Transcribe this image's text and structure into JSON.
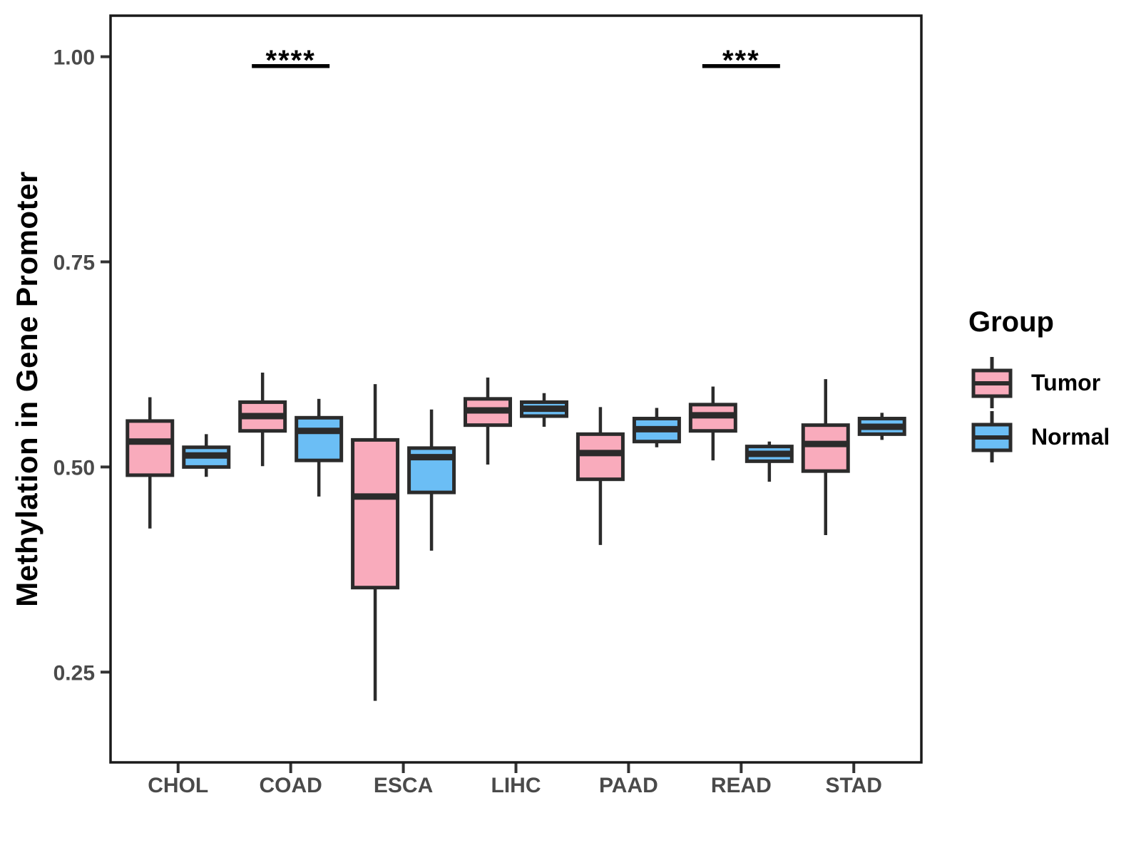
{
  "figure": {
    "background": "#ffffff",
    "panel_border_color": "#1a1a1a",
    "tick_color": "#333333",
    "tick_label_color": "#4a4a4a"
  },
  "chart_data": {
    "type": "boxplot",
    "title": "",
    "xlabel": "",
    "ylabel": "Methylation in Gene Promoter",
    "categories": [
      "CHOL",
      "COAD",
      "ESCA",
      "LIHC",
      "PAAD",
      "READ",
      "STAD"
    ],
    "groups": [
      "Tumor",
      "Normal"
    ],
    "ylim": [
      0.14,
      1.05
    ],
    "yticks": [
      0.25,
      0.5,
      0.75,
      1.0
    ],
    "ytick_labels": [
      "0.25",
      "0.50",
      "0.75",
      "1.00"
    ],
    "grid": false,
    "legend": {
      "title": "Group",
      "position": "right",
      "entries": [
        {
          "label": "Tumor",
          "color": "#F9ABBC"
        },
        {
          "label": "Normal",
          "color": "#6BBEF5"
        }
      ]
    },
    "series": [
      {
        "name": "Tumor",
        "fill": "#F9ABBC",
        "stroke": "#2b2b2b",
        "boxes": [
          {
            "category": "CHOL",
            "min": 0.425,
            "q1": 0.49,
            "median": 0.531,
            "q3": 0.556,
            "max": 0.585
          },
          {
            "category": "COAD",
            "min": 0.501,
            "q1": 0.544,
            "median": 0.562,
            "q3": 0.579,
            "max": 0.615
          },
          {
            "category": "ESCA",
            "min": 0.215,
            "q1": 0.353,
            "median": 0.464,
            "q3": 0.533,
            "max": 0.601
          },
          {
            "category": "LIHC",
            "min": 0.503,
            "q1": 0.551,
            "median": 0.569,
            "q3": 0.583,
            "max": 0.609
          },
          {
            "category": "PAAD",
            "min": 0.405,
            "q1": 0.485,
            "median": 0.517,
            "q3": 0.54,
            "max": 0.573
          },
          {
            "category": "READ",
            "min": 0.508,
            "q1": 0.544,
            "median": 0.563,
            "q3": 0.576,
            "max": 0.598
          },
          {
            "category": "STAD",
            "min": 0.417,
            "q1": 0.495,
            "median": 0.528,
            "q3": 0.551,
            "max": 0.607
          }
        ]
      },
      {
        "name": "Normal",
        "fill": "#6BBEF5",
        "stroke": "#2b2b2b",
        "boxes": [
          {
            "category": "CHOL",
            "min": 0.488,
            "q1": 0.5,
            "median": 0.514,
            "q3": 0.524,
            "max": 0.54
          },
          {
            "category": "COAD",
            "min": 0.464,
            "q1": 0.508,
            "median": 0.544,
            "q3": 0.56,
            "max": 0.583
          },
          {
            "category": "ESCA",
            "min": 0.398,
            "q1": 0.469,
            "median": 0.512,
            "q3": 0.523,
            "max": 0.57
          },
          {
            "category": "LIHC",
            "min": 0.549,
            "q1": 0.562,
            "median": 0.571,
            "q3": 0.579,
            "max": 0.59
          },
          {
            "category": "PAAD",
            "min": 0.524,
            "q1": 0.531,
            "median": 0.546,
            "q3": 0.559,
            "max": 0.572
          },
          {
            "category": "READ",
            "min": 0.482,
            "q1": 0.507,
            "median": 0.516,
            "q3": 0.525,
            "max": 0.531
          },
          {
            "category": "STAD",
            "min": 0.533,
            "q1": 0.54,
            "median": 0.549,
            "q3": 0.559,
            "max": 0.566
          }
        ]
      }
    ],
    "significance": [
      {
        "category": "COAD",
        "label": "****"
      },
      {
        "category": "READ",
        "label": "***"
      }
    ]
  }
}
